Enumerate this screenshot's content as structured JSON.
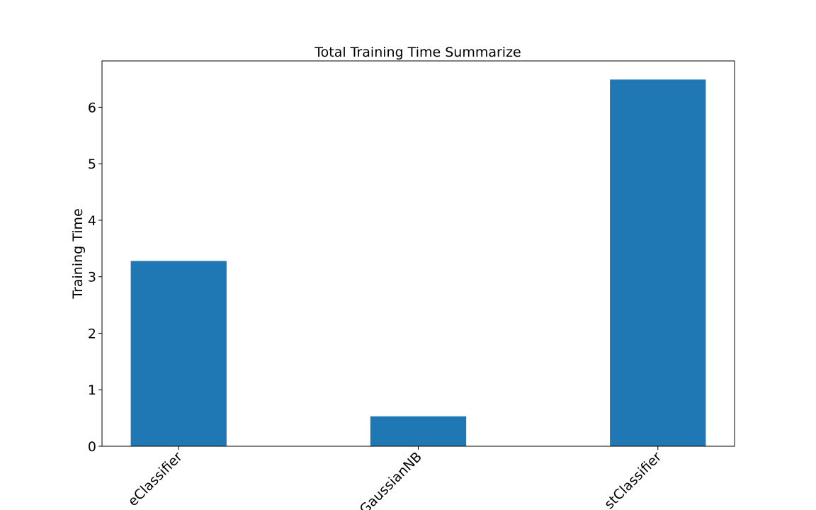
{
  "chart_data": {
    "type": "bar",
    "title": "Total Training Time Summarize",
    "ylabel": "Training Time",
    "categories": [
      "eClassifier",
      "GaussianNB",
      "stClassifier"
    ],
    "values": [
      3.28,
      0.53,
      6.49
    ],
    "color": "#1f77b4",
    "ylim": [
      0,
      6.82
    ],
    "yticks": [
      0,
      1,
      2,
      3,
      4,
      5,
      6
    ],
    "grid": false
  }
}
